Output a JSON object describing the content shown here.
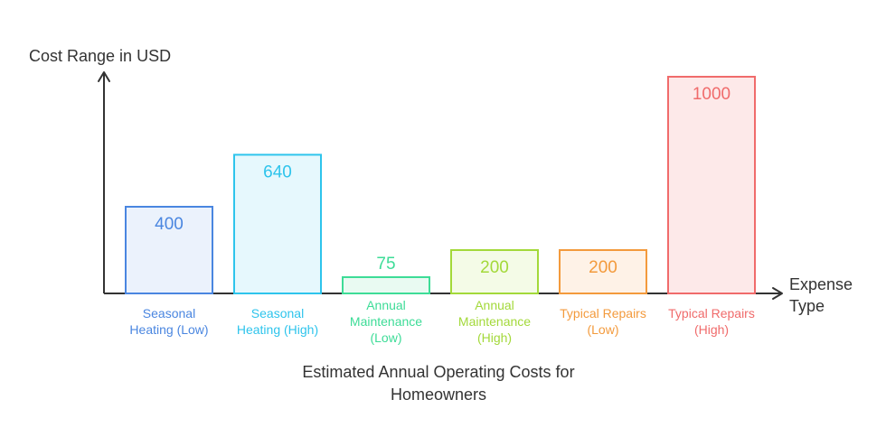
{
  "chart_data": {
    "type": "bar",
    "title": [
      "Estimated Annual Operating Costs for",
      "Homeowners"
    ],
    "ylabel": "Cost Range in USD",
    "xlabel": [
      "Expense",
      "Type"
    ],
    "ylim": [
      0,
      1000
    ],
    "grid": false,
    "categories": [
      [
        "Seasonal",
        "Heating (Low)"
      ],
      [
        "Seasonal",
        "Heating (High)"
      ],
      [
        "Annual",
        "Maintenance",
        "(Low)"
      ],
      [
        "Annual",
        "Maintenance",
        "(High)"
      ],
      [
        "Typical Repairs",
        "(Low)"
      ],
      [
        "Typical Repairs",
        "(High)"
      ]
    ],
    "values": [
      400,
      640,
      75,
      200,
      200,
      1000
    ],
    "colors": [
      {
        "stroke": "#4a86e0",
        "fill": "#ebf2fc"
      },
      {
        "stroke": "#2ec4ec",
        "fill": "#e6f8fd"
      },
      {
        "stroke": "#3ddc97",
        "fill": "#e9faf2"
      },
      {
        "stroke": "#a3d93a",
        "fill": "#f4fbe7"
      },
      {
        "stroke": "#f39a3c",
        "fill": "#fef2e7"
      },
      {
        "stroke": "#f06b6b",
        "fill": "#fde9e9"
      }
    ],
    "axis_color": "#333333"
  }
}
